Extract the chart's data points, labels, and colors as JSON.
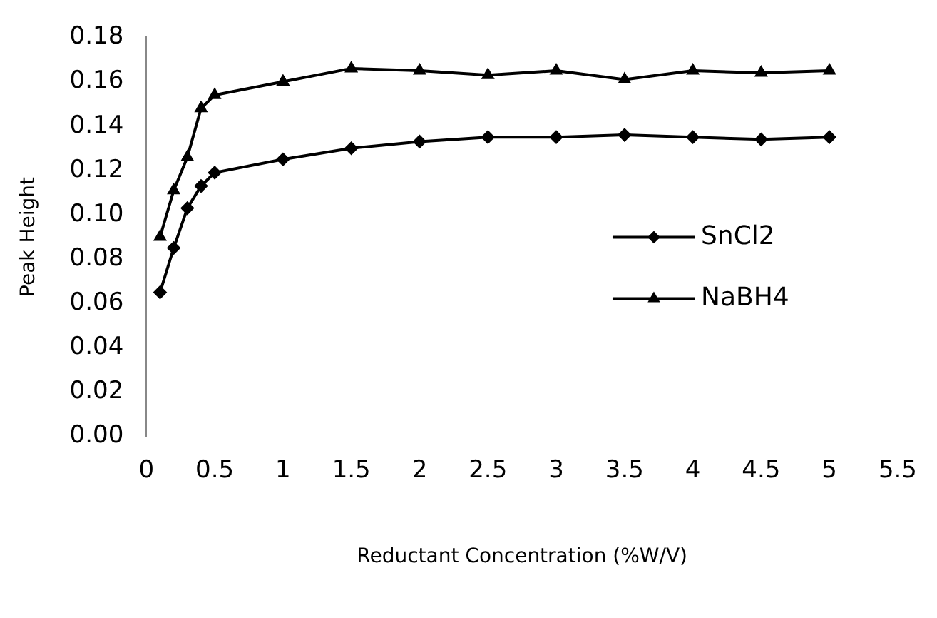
{
  "chart_data": {
    "type": "line",
    "xlabel": "Reductant Concentration (%W/V)",
    "ylabel": "Peak Height",
    "x": [
      0.1,
      0.2,
      0.3,
      0.4,
      0.5,
      1,
      1.5,
      2,
      2.5,
      3,
      3.5,
      4,
      4.5,
      5
    ],
    "series": [
      {
        "name": "SnCl2",
        "color": "#000000",
        "marker": "diamond",
        "values": [
          0.065,
          0.085,
          0.103,
          0.113,
          0.119,
          0.125,
          0.13,
          0.133,
          0.135,
          0.135,
          0.136,
          0.135,
          0.134,
          0.135
        ]
      },
      {
        "name": "NaBH4",
        "color": "#000000",
        "marker": "triangle",
        "values": [
          0.09,
          0.111,
          0.126,
          0.148,
          0.154,
          0.16,
          0.166,
          0.165,
          0.163,
          0.165,
          0.161,
          0.165,
          0.164,
          0.165
        ]
      }
    ],
    "xlim": [
      0,
      5.5
    ],
    "xticks": [
      0,
      0.5,
      1,
      1.5,
      2,
      2.5,
      3,
      3.5,
      4,
      4.5,
      5,
      5.5
    ],
    "ylim": [
      0,
      0.18
    ],
    "yticks": [
      {
        "value": 0,
        "label": "0.00"
      },
      {
        "value": 0.02,
        "label": "0.02"
      },
      {
        "value": 0.04,
        "label": "0.04"
      },
      {
        "value": 0.06,
        "label": "0.06"
      },
      {
        "value": 0.08,
        "label": "0.08"
      },
      {
        "value": 0.1,
        "label": "0.10"
      },
      {
        "value": 0.12,
        "label": "0.12"
      },
      {
        "value": 0.14,
        "label": "0.14"
      },
      {
        "value": 0.16,
        "label": "0.16"
      },
      {
        "value": 0.18,
        "label": "0.18"
      }
    ],
    "legend": "right",
    "grid": false,
    "line_style": "solid"
  }
}
